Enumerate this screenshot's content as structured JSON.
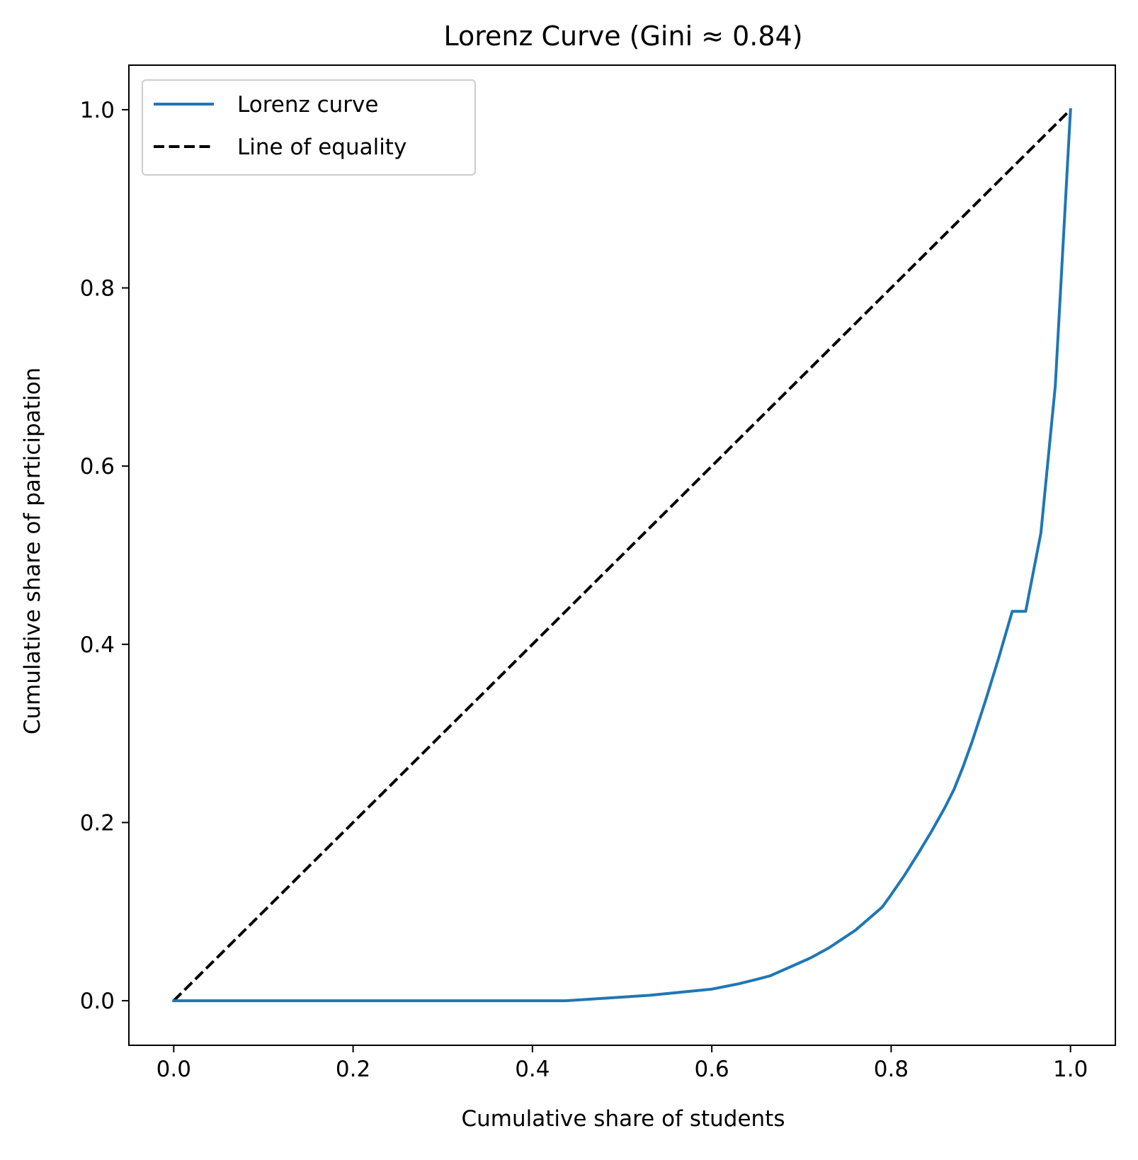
{
  "chart_data": {
    "type": "line",
    "title": "Lorenz Curve (Gini ≈ 0.84)",
    "xlabel": "Cumulative share of students",
    "ylabel": "Cumulative share of participation",
    "xlim": [
      -0.05,
      1.05
    ],
    "ylim": [
      -0.05,
      1.05
    ],
    "xticks": [
      0.0,
      0.2,
      0.4,
      0.6,
      0.8,
      1.0
    ],
    "xtick_labels": [
      "0.0",
      "0.2",
      "0.4",
      "0.6",
      "0.8",
      "1.0"
    ],
    "yticks": [
      0.0,
      0.2,
      0.4,
      0.6,
      0.8,
      1.0
    ],
    "ytick_labels": [
      "0.0",
      "0.2",
      "0.4",
      "0.6",
      "0.8",
      "1.0"
    ],
    "grid": false,
    "legend_position": "upper-left",
    "series": [
      {
        "name": "Lorenz curve",
        "color": "#1f77b4",
        "style": "solid",
        "x": [
          0.0,
          0.437,
          0.53,
          0.6,
          0.63,
          0.65,
          0.665,
          0.69,
          0.71,
          0.73,
          0.745,
          0.76,
          0.775,
          0.79,
          0.8,
          0.815,
          0.83,
          0.845,
          0.86,
          0.87,
          0.88,
          0.89,
          0.905,
          0.92,
          0.935,
          0.95,
          0.967,
          0.983,
          1.0
        ],
        "y": [
          0.0,
          0.0,
          0.006,
          0.013,
          0.019,
          0.024,
          0.028,
          0.039,
          0.048,
          0.059,
          0.069,
          0.079,
          0.092,
          0.105,
          0.119,
          0.141,
          0.165,
          0.19,
          0.217,
          0.237,
          0.262,
          0.29,
          0.336,
          0.385,
          0.437,
          0.437,
          0.525,
          0.69,
          1.0
        ]
      },
      {
        "name": "Line of equality",
        "color": "#000000",
        "style": "dashed",
        "x": [
          0.0,
          1.0
        ],
        "y": [
          0.0,
          1.0
        ]
      }
    ]
  }
}
